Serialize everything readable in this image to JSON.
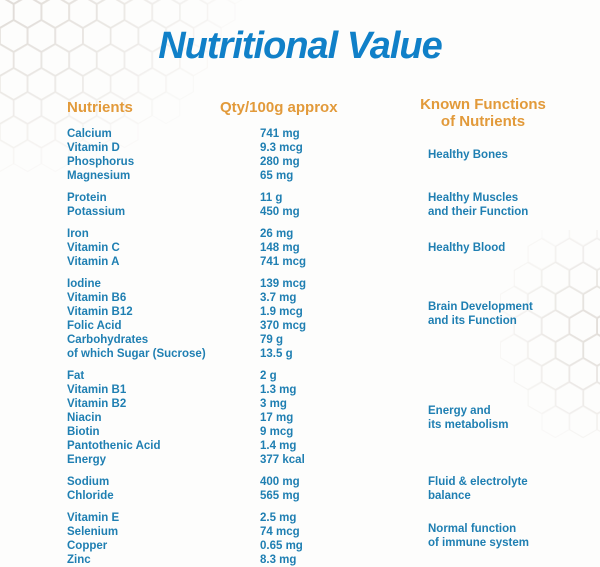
{
  "title": "Nutritional Value",
  "header": {
    "nutrients": "Nutrients",
    "qty": "Qty/100g approx",
    "functions": [
      "Known Functions",
      "of Nutrients"
    ]
  },
  "colors": {
    "title_blue": "#1080c8",
    "header_orange": "#e29a3a",
    "body_blue": "#1f7fb2"
  },
  "groups": [
    {
      "rows": [
        {
          "name": "Calcium",
          "qty": "741 mg"
        },
        {
          "name": "Vitamin D",
          "qty": "9.3 mcg"
        },
        {
          "name": "Phosphorus",
          "qty": "280 mg"
        },
        {
          "name": "Magnesium",
          "qty": "65 mg"
        }
      ],
      "function": [
        "Healthy Bones"
      ]
    },
    {
      "rows": [
        {
          "name": "Protein",
          "qty": "11 g"
        },
        {
          "name": "Potassium",
          "qty": "450 mg"
        }
      ],
      "function": [
        "Healthy Muscles",
        "and their Function"
      ]
    },
    {
      "rows": [
        {
          "name": "Iron",
          "qty": "26 mg"
        },
        {
          "name": "Vitamin C",
          "qty": "148 mg"
        },
        {
          "name": "Vitamin A",
          "qty": "741 mcg"
        }
      ],
      "function": [
        "Healthy Blood"
      ]
    },
    {
      "rows": [
        {
          "name": "Iodine",
          "qty": "139 mcg"
        },
        {
          "name": "Vitamin B6",
          "qty": "3.7 mg"
        },
        {
          "name": "Vitamin B12",
          "qty": "1.9 mcg"
        },
        {
          "name": "Folic Acid",
          "qty": "370 mcg"
        },
        {
          "name": "Carbohydrates",
          "qty": "79 g"
        },
        {
          "name": "of which Sugar (Sucrose)",
          "qty": "13.5 g"
        }
      ],
      "function": [
        "Brain Development",
        "and its Function"
      ]
    },
    {
      "rows": [
        {
          "name": "Fat",
          "qty": "2 g"
        },
        {
          "name": "Vitamin B1",
          "qty": "1.3 mg"
        },
        {
          "name": "Vitamin B2",
          "qty": "3 mg"
        },
        {
          "name": "Niacin",
          "qty": "17 mg"
        },
        {
          "name": "Biotin",
          "qty": "9 mcg"
        },
        {
          "name": "Pantothenic Acid",
          "qty": "1.4 mg"
        },
        {
          "name": "Energy",
          "qty": "377 kcal"
        }
      ],
      "function": [
        "Energy and",
        "its metabolism"
      ]
    },
    {
      "rows": [
        {
          "name": "Sodium",
          "qty": "400 mg"
        },
        {
          "name": "Chloride",
          "qty": "565 mg"
        }
      ],
      "function": [
        "Fluid & electrolyte",
        "balance"
      ]
    },
    {
      "rows": [
        {
          "name": "Vitamin E",
          "qty": "2.5 mg"
        },
        {
          "name": "Selenium",
          "qty": "74 mcg"
        },
        {
          "name": "Copper",
          "qty": "0.65 mg"
        },
        {
          "name": "Zinc",
          "qty": "8.3 mg"
        }
      ],
      "function": [
        "Normal function",
        "of immune system"
      ]
    }
  ]
}
